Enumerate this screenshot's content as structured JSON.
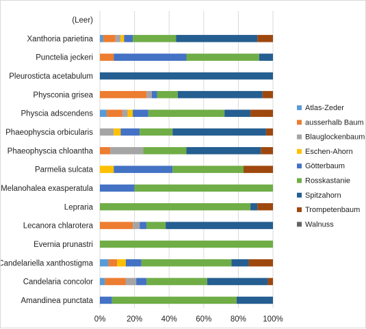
{
  "chart_data": {
    "type": "bar",
    "orientation": "horizontal",
    "stacked": "percent",
    "categories": [
      "(Leer)",
      "Xanthoria parietina",
      "Punctelia jeckeri",
      "Pleurosticta acetabulum",
      "Physconia grisea",
      "Physcia adscendens",
      "Phaeophyscia orbicularis",
      "Phaeophyscia chloantha",
      "Parmelia sulcata",
      "Melanohalea exasperatula",
      "Lepraria",
      "Lecanora chlarotera",
      "Evernia prunastri",
      "Candelariella xanthostigma",
      "Candelaria concolor",
      "Amandinea punctata"
    ],
    "series": [
      {
        "name": "Atlas-Zeder",
        "color": "#5b9bd5",
        "values": [
          0,
          2,
          0,
          0,
          0,
          4,
          0,
          0,
          0,
          0,
          0,
          0,
          0,
          5,
          3,
          0
        ]
      },
      {
        "name": "ausserhalb Baum",
        "color": "#ed7d31",
        "values": [
          0,
          7,
          8,
          0,
          27,
          9,
          0,
          6,
          0,
          0,
          0,
          19,
          0,
          5,
          12,
          0
        ]
      },
      {
        "name": "Blauglockenbaum",
        "color": "#a5a5a5",
        "values": [
          0,
          3,
          0,
          0,
          3,
          3,
          8,
          19,
          0,
          0,
          0,
          4,
          0,
          0,
          6,
          0
        ]
      },
      {
        "name": "Eschen-Ahorn",
        "color": "#ffc000",
        "values": [
          0,
          2,
          0,
          0,
          0,
          3,
          4,
          0,
          8,
          0,
          0,
          0,
          0,
          5,
          0,
          0
        ]
      },
      {
        "name": "Götterbaum",
        "color": "#4472c4",
        "values": [
          0,
          5,
          42,
          0,
          3,
          9,
          11,
          0,
          34,
          20,
          0,
          4,
          0,
          9,
          6,
          7
        ]
      },
      {
        "name": "Rosskastanie",
        "color": "#70ad47",
        "values": [
          0,
          25,
          42,
          0,
          12,
          44,
          19,
          25,
          41,
          80,
          87,
          11,
          100,
          52,
          35,
          72
        ]
      },
      {
        "name": "Spitzahorn",
        "color": "#255e91",
        "values": [
          0,
          47,
          8,
          100,
          49,
          15,
          54,
          43,
          0,
          0,
          4,
          62,
          0,
          10,
          35,
          21
        ]
      },
      {
        "name": "Trompetenbaum",
        "color": "#9e480e",
        "values": [
          0,
          9,
          0,
          0,
          6,
          13,
          4,
          7,
          17,
          0,
          9,
          0,
          0,
          14,
          3,
          0
        ]
      },
      {
        "name": "Walnuss",
        "color": "#636363",
        "values": [
          0,
          0,
          0,
          0,
          0,
          0,
          0,
          0,
          0,
          0,
          0,
          0,
          0,
          0,
          0,
          0
        ]
      }
    ],
    "xlim": [
      0,
      100
    ],
    "x_ticks": [
      "0%",
      "20%",
      "40%",
      "60%",
      "80%",
      "100%"
    ],
    "grid": "vertical",
    "legend": "right",
    "title": "",
    "xlabel": "",
    "ylabel": ""
  }
}
